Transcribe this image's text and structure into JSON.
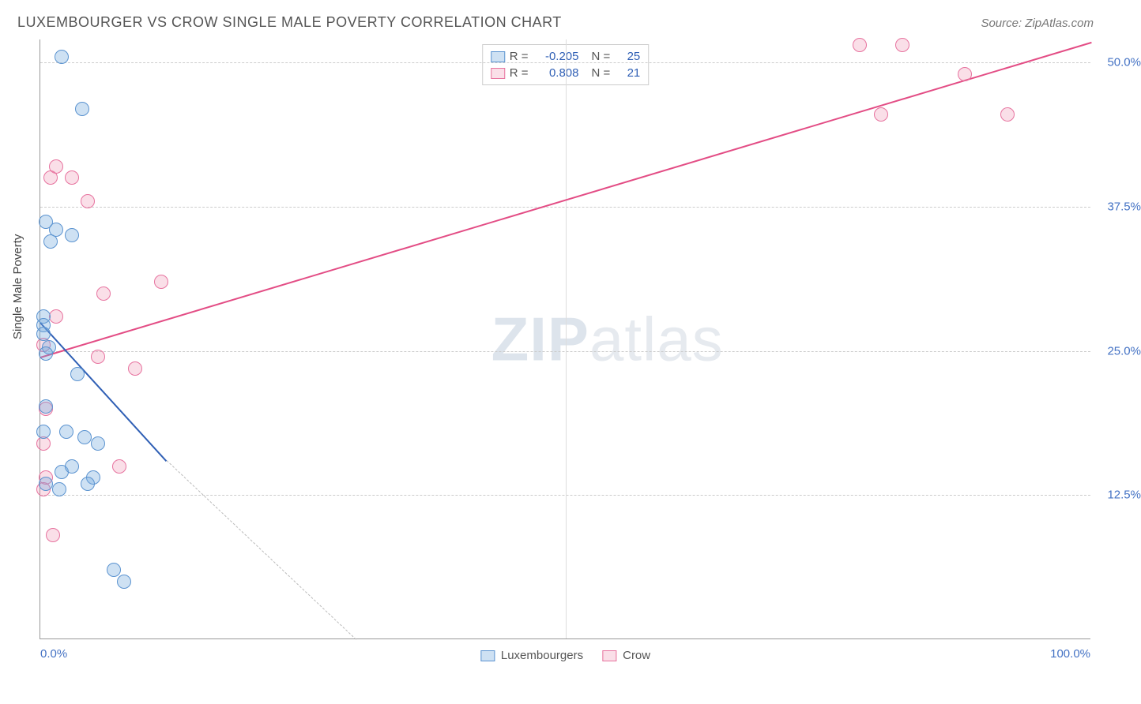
{
  "header": {
    "title": "LUXEMBOURGER VS CROW SINGLE MALE POVERTY CORRELATION CHART",
    "source": "Source: ZipAtlas.com"
  },
  "axes": {
    "ylabel": "Single Male Poverty",
    "xmin": 0,
    "xmax": 100,
    "ymin": 0,
    "ymax": 52,
    "yticks": [
      {
        "v": 12.5,
        "label": "12.5%"
      },
      {
        "v": 25.0,
        "label": "25.0%"
      },
      {
        "v": 37.5,
        "label": "37.5%"
      },
      {
        "v": 50.0,
        "label": "50.0%"
      }
    ],
    "xticks": [
      {
        "v": 0,
        "label": "0.0%",
        "align": "left"
      },
      {
        "v": 100,
        "label": "100.0%",
        "align": "right"
      }
    ],
    "vgrid": [
      50
    ]
  },
  "watermark": {
    "part1": "ZIP",
    "part2": "atlas"
  },
  "legend_top": {
    "rows": [
      {
        "swatch": "blue",
        "r_label": "R =",
        "r": "-0.205",
        "n_label": "N =",
        "n": "25"
      },
      {
        "swatch": "pink",
        "r_label": "R =",
        "r": "0.808",
        "n_label": "N =",
        "n": "21"
      }
    ]
  },
  "legend_bottom": {
    "items": [
      {
        "swatch": "blue",
        "label": "Luxembourgers"
      },
      {
        "swatch": "pink",
        "label": "Crow"
      }
    ]
  },
  "series": {
    "blue": {
      "color_fill": "rgba(116,169,222,0.35)",
      "color_stroke": "#5b93d0",
      "points": [
        {
          "x": 2.0,
          "y": 50.5
        },
        {
          "x": 4.0,
          "y": 46.0
        },
        {
          "x": 0.5,
          "y": 36.2
        },
        {
          "x": 1.5,
          "y": 35.5
        },
        {
          "x": 1.0,
          "y": 34.5
        },
        {
          "x": 3.0,
          "y": 35.0
        },
        {
          "x": 0.3,
          "y": 28.0
        },
        {
          "x": 0.3,
          "y": 27.2
        },
        {
          "x": 0.3,
          "y": 26.5
        },
        {
          "x": 0.8,
          "y": 25.3
        },
        {
          "x": 0.5,
          "y": 24.8
        },
        {
          "x": 3.5,
          "y": 23.0
        },
        {
          "x": 0.5,
          "y": 20.2
        },
        {
          "x": 0.3,
          "y": 18.0
        },
        {
          "x": 2.5,
          "y": 18.0
        },
        {
          "x": 4.2,
          "y": 17.5
        },
        {
          "x": 5.5,
          "y": 17.0
        },
        {
          "x": 2.0,
          "y": 14.5
        },
        {
          "x": 3.0,
          "y": 15.0
        },
        {
          "x": 5.0,
          "y": 14.0
        },
        {
          "x": 4.5,
          "y": 13.5
        },
        {
          "x": 0.5,
          "y": 13.5
        },
        {
          "x": 1.8,
          "y": 13.0
        },
        {
          "x": 7.0,
          "y": 6.0
        },
        {
          "x": 8.0,
          "y": 5.0
        }
      ],
      "trend": {
        "x1": 0,
        "y1": 27.5,
        "x2": 12,
        "y2": 15.5,
        "extend_x2": 30,
        "extend_y2": 0
      }
    },
    "pink": {
      "color_fill": "rgba(236,128,165,0.25)",
      "color_stroke": "#e7739f",
      "points": [
        {
          "x": 78,
          "y": 51.5
        },
        {
          "x": 82,
          "y": 51.5
        },
        {
          "x": 88,
          "y": 49.0
        },
        {
          "x": 80,
          "y": 45.5
        },
        {
          "x": 92,
          "y": 45.5
        },
        {
          "x": 1.5,
          "y": 41.0
        },
        {
          "x": 1.0,
          "y": 40.0
        },
        {
          "x": 3.0,
          "y": 40.0
        },
        {
          "x": 4.5,
          "y": 38.0
        },
        {
          "x": 11.5,
          "y": 31.0
        },
        {
          "x": 6.0,
          "y": 30.0
        },
        {
          "x": 1.5,
          "y": 28.0
        },
        {
          "x": 0.3,
          "y": 25.5
        },
        {
          "x": 5.5,
          "y": 24.5
        },
        {
          "x": 9.0,
          "y": 23.5
        },
        {
          "x": 0.5,
          "y": 20.0
        },
        {
          "x": 0.3,
          "y": 17.0
        },
        {
          "x": 7.5,
          "y": 15.0
        },
        {
          "x": 0.5,
          "y": 14.0
        },
        {
          "x": 0.3,
          "y": 13.0
        },
        {
          "x": 1.2,
          "y": 9.0
        }
      ],
      "trend": {
        "x1": 0,
        "y1": 24.5,
        "x2": 100,
        "y2": 51.8
      }
    }
  }
}
